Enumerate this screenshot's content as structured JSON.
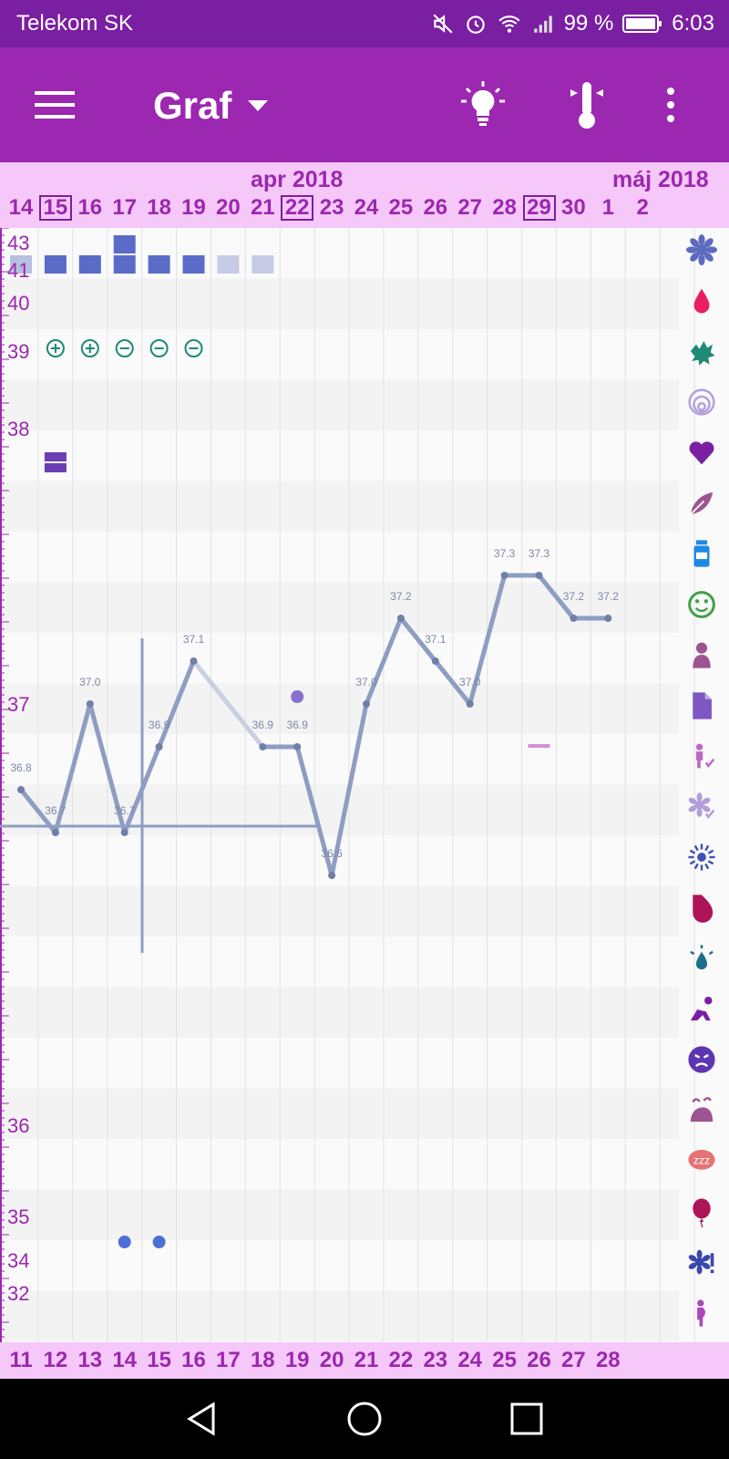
{
  "status_bar": {
    "carrier": "Telekom SK",
    "battery": "99 %",
    "time": "6:03"
  },
  "toolbar": {
    "title": "Graf"
  },
  "header": {
    "months": [
      {
        "label": "apr 2018"
      },
      {
        "label": "máj 2018"
      }
    ],
    "days": [
      "14",
      "15",
      "16",
      "17",
      "18",
      "19",
      "20",
      "21",
      "22",
      "23",
      "24",
      "25",
      "26",
      "27",
      "28",
      "29",
      "30",
      "1",
      "2"
    ],
    "boxed_days": [
      "15",
      "22",
      "29"
    ]
  },
  "footer": {
    "days": [
      "11",
      "12",
      "13",
      "14",
      "15",
      "16",
      "17",
      "18",
      "19",
      "20",
      "21",
      "22",
      "23",
      "24",
      "25",
      "26",
      "27",
      "28"
    ]
  },
  "y_axis": {
    "labels": [
      "43",
      "41",
      "40",
      "39",
      "38",
      "37",
      "36",
      "35",
      "34",
      "32"
    ]
  },
  "chart_data": {
    "type": "line",
    "x": [
      "13",
      "14",
      "15",
      "16",
      "17",
      "18",
      "19",
      "20",
      "21",
      "22",
      "23",
      "24",
      "25",
      "26",
      "27",
      "28",
      "29",
      "30",
      "1"
    ],
    "series": [
      {
        "values": [
          36.8,
          36.7,
          37.0,
          36.7,
          36.9,
          37.1,
          null,
          36.9,
          36.9,
          36.6,
          37.0,
          37.2,
          37.1,
          37.0,
          37.3,
          37.3,
          37.2,
          37.2,
          null
        ],
        "labels": [
          "36.8",
          "36.7",
          "37.0",
          "36.7",
          "36.9",
          "37.1",
          "",
          "36.9",
          "36.9",
          "36.6",
          "37.0",
          "37.2",
          "37.1",
          "37.0",
          "37.3",
          "37.3",
          "37.2",
          "37.2",
          ""
        ]
      }
    ],
    "coverline": 36.8,
    "line_color": "#8e9dc2"
  },
  "symbols": {
    "test_signs": [
      "plus",
      "plus",
      "minus",
      "minus",
      "minus"
    ],
    "right_icons": [
      "flower-icon",
      "drop-icon",
      "splash-icon",
      "spiral-icon",
      "heart-icon",
      "leaf-icon",
      "bottle-icon",
      "smiley-icon",
      "figure-icon",
      "document-icon",
      "pregnant-check-icon",
      "flower-check-icon",
      "burst-icon",
      "breast-icon",
      "sweat-drop-icon",
      "exercise-icon",
      "angry-face-icon",
      "snail-icon",
      "sleep-icon",
      "balloon-icon",
      "flower-alert-icon",
      "pregnant-icon",
      "cycle-icon"
    ]
  },
  "colors": {
    "status": "#7b1fa2",
    "toolbar": "#9c27b0",
    "band": "#f6c8fa",
    "accent": "#9c27b0"
  }
}
